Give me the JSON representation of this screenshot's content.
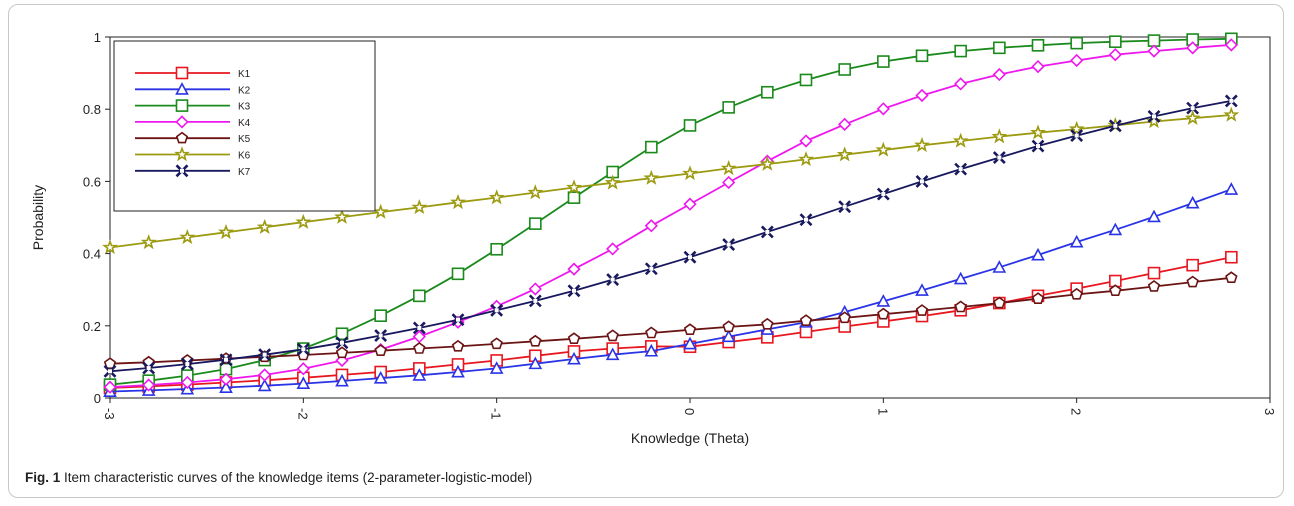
{
  "caption": {
    "fig_label": "Fig. 1",
    "text": "Item characteristic curves of the knowledge items (2-parameter-logistic-model)"
  },
  "chart_data": {
    "type": "line",
    "xlabel": "Knowledge (Theta)",
    "ylabel": "Probability",
    "xlim": [
      -3,
      3
    ],
    "ylim": [
      0,
      1
    ],
    "xticks": [
      -3,
      -2,
      -1,
      0,
      1,
      2,
      3
    ],
    "xtick_labels": [
      "-3",
      "-2",
      "-1",
      "0",
      "1",
      "2",
      "3"
    ],
    "yticks": [
      0,
      0.2,
      0.4,
      0.6,
      0.8,
      1
    ],
    "ytick_labels": [
      "0",
      "0.2",
      "0.4",
      "0.6",
      "0.8",
      "1"
    ],
    "x_tick_label_rotation": "vertical",
    "legend_position": "top-left",
    "grid": false,
    "x": [
      -3,
      -2.8,
      -2.6,
      -2.4,
      -2.2,
      -2,
      -1.8,
      -1.6,
      -1.4,
      -1.2,
      -1,
      -0.8,
      -0.6,
      -0.4,
      -0.2,
      0,
      0.2,
      0.4,
      0.6,
      0.8,
      1,
      1.2,
      1.4,
      1.6,
      1.8,
      2,
      2.2,
      2.4,
      2.6,
      2.8
    ],
    "series": [
      {
        "name": "K1",
        "color": "#e8161e",
        "marker": "square",
        "values": [
          0.028,
          0.032,
          0.037,
          0.043,
          0.049,
          0.056,
          0.064,
          0.072,
          0.082,
          0.093,
          0.104,
          0.117,
          0.129,
          0.137,
          0.143,
          0.142,
          0.155,
          0.168,
          0.183,
          0.198,
          0.212,
          0.227,
          0.243,
          0.263,
          0.283,
          0.303,
          0.324,
          0.346,
          0.368,
          0.39
        ]
      },
      {
        "name": "K2",
        "color": "#2a34e6",
        "marker": "triangle",
        "values": [
          0.018,
          0.021,
          0.025,
          0.029,
          0.034,
          0.04,
          0.047,
          0.055,
          0.063,
          0.072,
          0.082,
          0.095,
          0.108,
          0.12,
          0.13,
          0.15,
          0.17,
          0.19,
          0.21,
          0.238,
          0.268,
          0.298,
          0.33,
          0.362,
          0.396,
          0.432,
          0.466,
          0.502,
          0.54,
          0.578
        ]
      },
      {
        "name": "K3",
        "color": "#1a8a1c",
        "marker": "square",
        "values": [
          0.037,
          0.048,
          0.062,
          0.08,
          0.105,
          0.137,
          0.178,
          0.228,
          0.283,
          0.344,
          0.412,
          0.483,
          0.555,
          0.626,
          0.695,
          0.755,
          0.805,
          0.847,
          0.881,
          0.91,
          0.932,
          0.948,
          0.961,
          0.97,
          0.977,
          0.983,
          0.987,
          0.99,
          0.993,
          0.995
        ]
      },
      {
        "name": "K4",
        "color": "#ee18ee",
        "marker": "diamond",
        "values": [
          0.03,
          0.036,
          0.043,
          0.052,
          0.064,
          0.081,
          0.104,
          0.134,
          0.17,
          0.21,
          0.254,
          0.302,
          0.357,
          0.413,
          0.477,
          0.537,
          0.597,
          0.656,
          0.712,
          0.758,
          0.801,
          0.838,
          0.87,
          0.896,
          0.918,
          0.935,
          0.951,
          0.961,
          0.97,
          0.978
        ]
      },
      {
        "name": "K5",
        "color": "#6b1414",
        "marker": "pentagon",
        "values": [
          0.095,
          0.099,
          0.104,
          0.109,
          0.114,
          0.119,
          0.125,
          0.131,
          0.137,
          0.143,
          0.15,
          0.157,
          0.164,
          0.172,
          0.18,
          0.189,
          0.197,
          0.204,
          0.214,
          0.222,
          0.232,
          0.242,
          0.252,
          0.263,
          0.275,
          0.287,
          0.297,
          0.309,
          0.321,
          0.333
        ]
      },
      {
        "name": "K6",
        "color": "#9c9a10",
        "marker": "star",
        "values": [
          0.417,
          0.431,
          0.445,
          0.459,
          0.473,
          0.487,
          0.501,
          0.515,
          0.528,
          0.542,
          0.555,
          0.569,
          0.583,
          0.596,
          0.609,
          0.622,
          0.636,
          0.648,
          0.661,
          0.674,
          0.687,
          0.7,
          0.712,
          0.724,
          0.735,
          0.745,
          0.755,
          0.766,
          0.775,
          0.784
        ]
      },
      {
        "name": "K7",
        "color": "#18185e",
        "marker": "x",
        "values": [
          0.074,
          0.083,
          0.094,
          0.106,
          0.12,
          0.135,
          0.153,
          0.173,
          0.194,
          0.217,
          0.243,
          0.269,
          0.297,
          0.328,
          0.358,
          0.39,
          0.425,
          0.46,
          0.494,
          0.53,
          0.565,
          0.6,
          0.634,
          0.666,
          0.698,
          0.727,
          0.754,
          0.78,
          0.803,
          0.823
        ]
      }
    ]
  }
}
